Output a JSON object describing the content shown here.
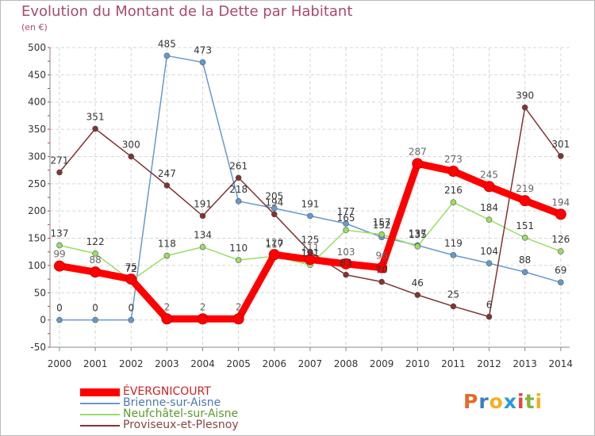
{
  "header": {
    "title": "Evolution du Montant de la Dette par Habitant",
    "unit": "(en €)"
  },
  "brand": {
    "logo_letters": [
      "P",
      "r",
      "o",
      "x",
      "i",
      "t",
      "i"
    ],
    "logo_colors": [
      "#e46a2a",
      "#3d7fc4",
      "#f2b01e",
      "#2b9ad6",
      "#e2483b",
      "#7fb53c",
      "#f2b01e"
    ]
  },
  "chart_data": {
    "type": "line",
    "title": "Evolution du Montant de la Dette par Habitant",
    "ylabel": "(en €)",
    "xlabel": "",
    "x": [
      "2000",
      "2001",
      "2002",
      "2003",
      "2004",
      "2005",
      "2006",
      "2007",
      "2008",
      "2009",
      "2010",
      "2011",
      "2012",
      "2013",
      "2014"
    ],
    "ylim": [
      -50,
      500
    ],
    "yticks": [
      "-50",
      "0",
      "50",
      "100",
      "150",
      "200",
      "250",
      "300",
      "350",
      "400",
      "450",
      "500"
    ],
    "grid": true,
    "legend_position": "bottom-left",
    "series": [
      {
        "name": "ÉVERGNICOURT",
        "color": "#ff0000",
        "labelColor": "#666666",
        "thick": true,
        "values": [
          99,
          88,
          75,
          2,
          2,
          2,
          120,
          111,
          103,
          96,
          287,
          273,
          245,
          219,
          194
        ],
        "labels": [
          "99",
          "88",
          "75",
          "2",
          "2",
          "2",
          "120",
          "111",
          "103",
          "96",
          "287",
          "273",
          "245",
          "219",
          "194"
        ]
      },
      {
        "name": "Brienne-sur-Aisne",
        "color": "#6699cc",
        "labelColor": "#333333",
        "thick": false,
        "values": [
          0,
          0,
          0,
          485,
          473,
          218,
          205,
          191,
          177,
          152,
          137,
          119,
          104,
          88,
          69
        ],
        "labels": [
          "0",
          "0",
          "0",
          "485",
          "473",
          "218",
          "205",
          "191",
          "177",
          "152",
          "137",
          "119",
          "104",
          "88",
          "69"
        ]
      },
      {
        "name": "Neufchâtel-sur-Aisne",
        "color": "#99dd66",
        "labelColor": "#333333",
        "thick": false,
        "values": [
          137,
          122,
          72,
          118,
          134,
          110,
          117,
          101,
          165,
          157,
          135,
          216,
          184,
          151,
          126
        ],
        "labels": [
          "137",
          "122",
          "72",
          "118",
          "134",
          "110",
          "117",
          "101",
          "165",
          "157",
          "135",
          "216",
          "184",
          "151",
          "126"
        ]
      },
      {
        "name": "Proviseux-et-Plesnoy",
        "color": "#803333",
        "labelColor": "#333333",
        "thick": false,
        "values": [
          271,
          351,
          300,
          247,
          191,
          261,
          194,
          125,
          83,
          70,
          46,
          25,
          6,
          390,
          301
        ],
        "labels": [
          "271",
          "351",
          "300",
          "247",
          "191",
          "261",
          "194",
          "125",
          "83",
          "70",
          "46",
          "25",
          "6",
          "390",
          "301"
        ]
      }
    ]
  }
}
